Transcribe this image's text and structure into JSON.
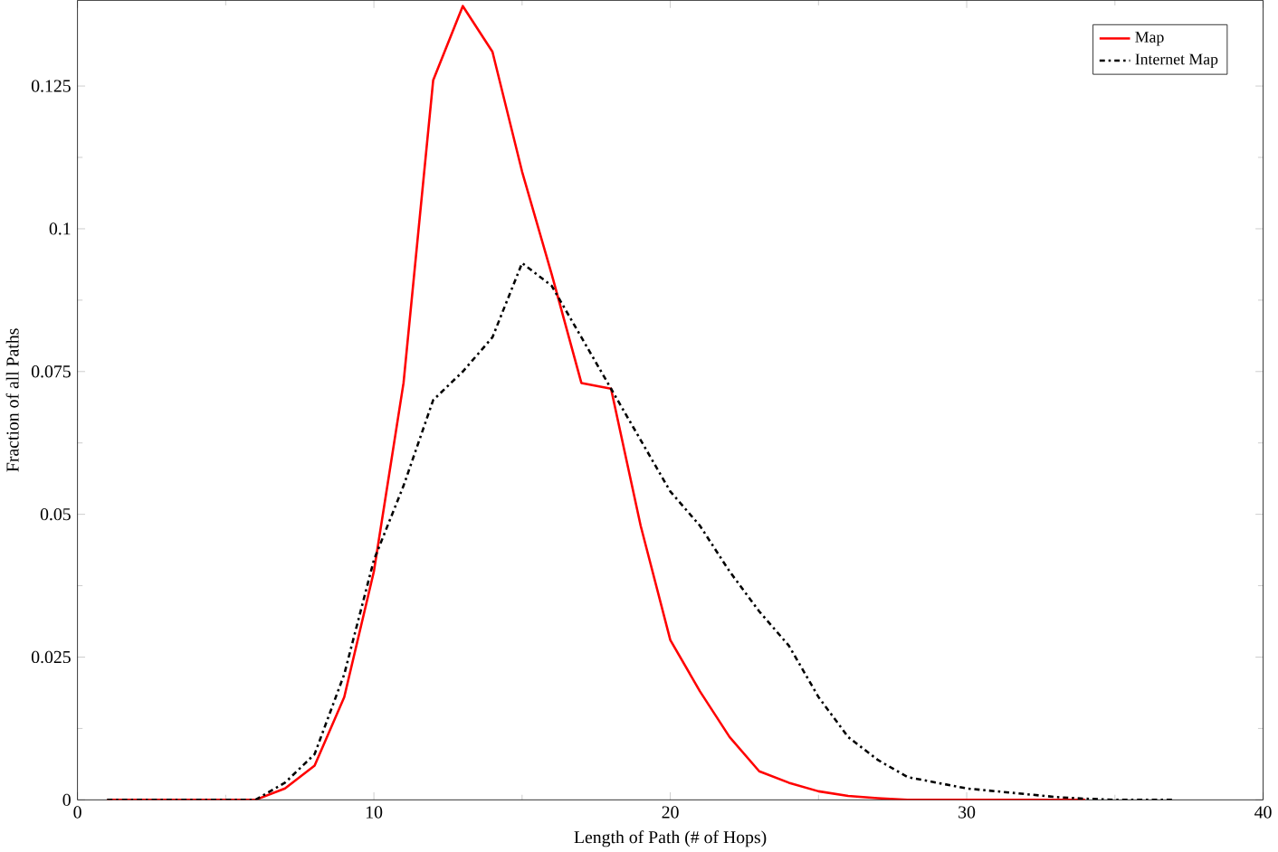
{
  "chart_data": {
    "type": "line",
    "xlabel": "Length of Path (# of Hops)",
    "ylabel": "Fraction of all Paths",
    "xlim": [
      0,
      40
    ],
    "ylim": [
      0,
      0.14
    ],
    "xticks": [
      0,
      10,
      20,
      30,
      40
    ],
    "yticks": [
      0,
      0.025,
      0.05,
      0.075,
      0.1,
      0.125
    ],
    "legend": "top right",
    "grid": false,
    "marker": "none",
    "x": [
      1,
      2,
      3,
      4,
      5,
      6,
      7,
      8,
      9,
      10,
      11,
      12,
      13,
      14,
      15,
      16,
      17,
      18,
      19,
      20,
      21,
      22,
      23,
      24,
      25,
      26,
      27,
      28,
      29,
      30,
      31,
      32,
      33,
      34,
      35,
      36,
      37
    ],
    "series": [
      {
        "name": "Map",
        "color": "#ff0000",
        "line_style": "solid",
        "values": [
          0,
          0,
          0,
          0,
          0,
          0,
          0.002,
          0.006,
          0.018,
          0.04,
          0.073,
          0.126,
          0.139,
          0.131,
          0.11,
          0.092,
          0.073,
          0.072,
          0.048,
          0.028,
          0.019,
          0.011,
          0.005,
          0.003,
          0.0015,
          0.0007,
          0.0003,
          0,
          0,
          0,
          0,
          0,
          0,
          0,
          null,
          null,
          null
        ]
      },
      {
        "name": "Internet Map",
        "color": "#000000",
        "line_style": "dashdot",
        "values": [
          0,
          0,
          0,
          0,
          0,
          0,
          0.003,
          0.008,
          0.022,
          0.042,
          0.055,
          0.07,
          0.075,
          0.081,
          0.094,
          0.09,
          0.081,
          0.072,
          0.063,
          0.054,
          0.048,
          0.04,
          0.033,
          0.027,
          0.018,
          0.011,
          0.007,
          0.004,
          0.003,
          0.002,
          0.0015,
          0.001,
          0.0005,
          0.0002,
          0,
          0,
          0
        ]
      }
    ]
  }
}
